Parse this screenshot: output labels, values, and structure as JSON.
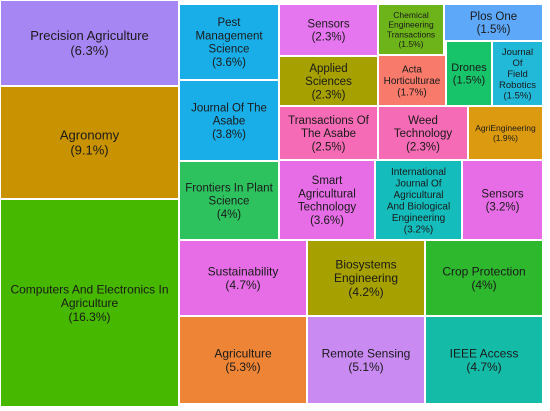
{
  "chart_data": {
    "type": "treemap",
    "title": "",
    "items": [
      {
        "label": "Precision Agriculture",
        "value": 6.3,
        "pct": "(6.3%)",
        "color": "#a686f2"
      },
      {
        "label": "Agronomy",
        "value": 9.1,
        "pct": "(9.1%)",
        "color": "#c99200"
      },
      {
        "label": "Computers And Electronics In Agriculture",
        "value": 16.3,
        "pct": "(16.3%)",
        "color": "#46b800"
      },
      {
        "label": "Pest Management Science",
        "value": 3.6,
        "pct": "(3.6%)",
        "color": "#1aaee8"
      },
      {
        "label": "Journal Of The Asabe",
        "value": 3.8,
        "pct": "(3.8%)",
        "color": "#1aaee8"
      },
      {
        "label": "Frontiers In Plant Science",
        "value": 4.0,
        "pct": "(4%)",
        "color": "#2ec25f"
      },
      {
        "label": "Sensors",
        "value": 2.3,
        "pct": "(2.3%)",
        "color": "#e676f0"
      },
      {
        "label": "Applied Sciences",
        "value": 2.3,
        "pct": "(2.3%)",
        "color": "#a6a000"
      },
      {
        "label": "Transactions Of The Asabe",
        "value": 2.5,
        "pct": "(2.5%)",
        "color": "#f56bb5"
      },
      {
        "label": "Smart Agricultural Technology",
        "value": 3.6,
        "pct": "(3.6%)",
        "color": "#e66de6"
      },
      {
        "label": "Chemical Engineering Transactions",
        "value": 1.5,
        "pct": "(1.5%)",
        "color": "#6db31a"
      },
      {
        "label": "Acta Horticulturae",
        "value": 1.7,
        "pct": "(1.7%)",
        "color": "#f77a6b"
      },
      {
        "label": "Weed Technology",
        "value": 2.3,
        "pct": "(2.3%)",
        "color": "#f56bb5"
      },
      {
        "label": "International Journal Of Agricultural And Biological Engineering",
        "value": 3.2,
        "pct": "(3.2%)",
        "color": "#14bcbc"
      },
      {
        "label": "Plos One",
        "value": 1.5,
        "pct": "(1.5%)",
        "color": "#5ea8fa"
      },
      {
        "label": "Drones",
        "value": 1.5,
        "pct": "(1.5%)",
        "color": "#18c46a"
      },
      {
        "label": "Journal Of Field Robotics",
        "value": 1.5,
        "pct": "(1.5%)",
        "color": "#22b8d8"
      },
      {
        "label": "AgriEngineering",
        "value": 1.9,
        "pct": "(1.9%)",
        "color": "#dc9a10"
      },
      {
        "label": "Sensors",
        "value": 3.2,
        "pct": "(3.2%)",
        "color": "#e66de6"
      },
      {
        "label": "Sustainability",
        "value": 4.7,
        "pct": "(4.7%)",
        "color": "#e66de6"
      },
      {
        "label": "Biosystems Engineering",
        "value": 4.2,
        "pct": "(4.2%)",
        "color": "#a6a000"
      },
      {
        "label": "Crop Protection",
        "value": 4.0,
        "pct": "(4%)",
        "color": "#2db82d"
      },
      {
        "label": "Agriculture",
        "value": 5.3,
        "pct": "(5.3%)",
        "color": "#ee8536"
      },
      {
        "label": "Remote Sensing",
        "value": 5.1,
        "pct": "(5.1%)",
        "color": "#c98af2"
      },
      {
        "label": "IEEE Access",
        "value": 4.7,
        "pct": "(4.7%)",
        "color": "#14bca7"
      }
    ]
  }
}
